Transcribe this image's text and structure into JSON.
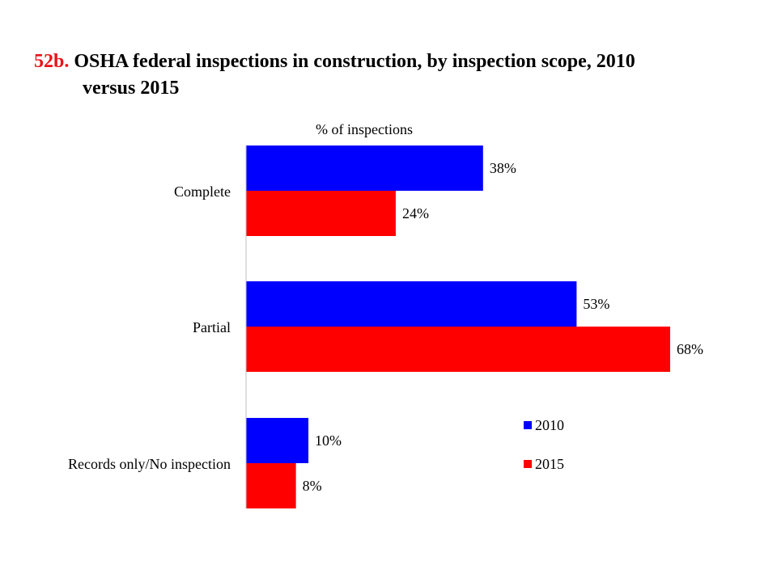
{
  "title": {
    "number": "52b.",
    "line1": "OSHA federal inspections in construction, by inspection scope, 2010",
    "line2": "versus 2015"
  },
  "chart_data": {
    "type": "bar",
    "orientation": "horizontal",
    "xlabel": "% of inspections",
    "categories": [
      "Complete",
      "Partial",
      "Records only/No inspection"
    ],
    "series": [
      {
        "name": "2010",
        "color": "#0000ff",
        "values": [
          38,
          53,
          10
        ],
        "labels": [
          "38%",
          "53%",
          "10%"
        ]
      },
      {
        "name": "2015",
        "color": "#ff0000",
        "values": [
          24,
          68,
          8
        ],
        "labels": [
          "24%",
          "68%",
          "8%"
        ]
      }
    ],
    "xlim": [
      0,
      68
    ],
    "grid": false,
    "legend": "right"
  }
}
